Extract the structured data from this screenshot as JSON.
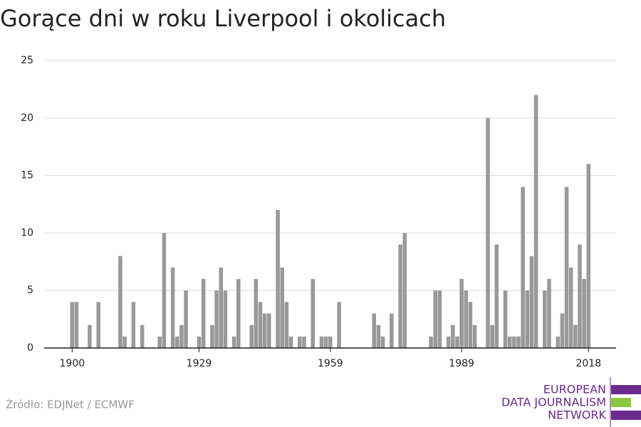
{
  "chart_data": {
    "type": "bar",
    "title": "Gorące dni w roku Liverpool i okolicach",
    "x": [
      1900,
      1901,
      1904,
      1906,
      1911,
      1912,
      1914,
      1916,
      1920,
      1921,
      1923,
      1924,
      1925,
      1926,
      1929,
      1930,
      1932,
      1933,
      1934,
      1935,
      1937,
      1938,
      1941,
      1942,
      1943,
      1944,
      1945,
      1947,
      1948,
      1949,
      1950,
      1952,
      1953,
      1955,
      1957,
      1958,
      1959,
      1961,
      1969,
      1970,
      1971,
      1973,
      1975,
      1976,
      1982,
      1983,
      1984,
      1986,
      1987,
      1988,
      1989,
      1990,
      1991,
      1992,
      1995,
      1996,
      1997,
      1999,
      2000,
      2001,
      2002,
      2003,
      2004,
      2005,
      2006,
      2008,
      2009,
      2011,
      2012,
      2013,
      2014,
      2015,
      2016,
      2017,
      2018
    ],
    "values": [
      4,
      4,
      2,
      4,
      8,
      1,
      4,
      2,
      1,
      10,
      7,
      1,
      2,
      5,
      1,
      6,
      2,
      5,
      7,
      5,
      1,
      6,
      2,
      6,
      4,
      3,
      3,
      12,
      7,
      4,
      1,
      1,
      1,
      6,
      1,
      1,
      1,
      4,
      3,
      2,
      1,
      3,
      9,
      10,
      1,
      5,
      5,
      1,
      2,
      1,
      6,
      5,
      4,
      2,
      20,
      2,
      9,
      5,
      1,
      1,
      1,
      14,
      5,
      8,
      22,
      5,
      6,
      1,
      3,
      14,
      7,
      2,
      9,
      6,
      16
    ],
    "color": "#999999",
    "xlim": [
      1893.6,
      2024.3
    ],
    "xticks": [
      1900,
      1929,
      1959,
      1989,
      2018
    ],
    "ylim": [
      0,
      25
    ],
    "yticks": [
      0,
      5,
      10,
      15,
      20,
      25
    ],
    "grid": true
  },
  "footer": {
    "source": "Źródło: EDJNet / ECMWF",
    "logo": [
      "EUROPEAN",
      "DATA JOURNALISM",
      "NETWORK"
    ]
  }
}
